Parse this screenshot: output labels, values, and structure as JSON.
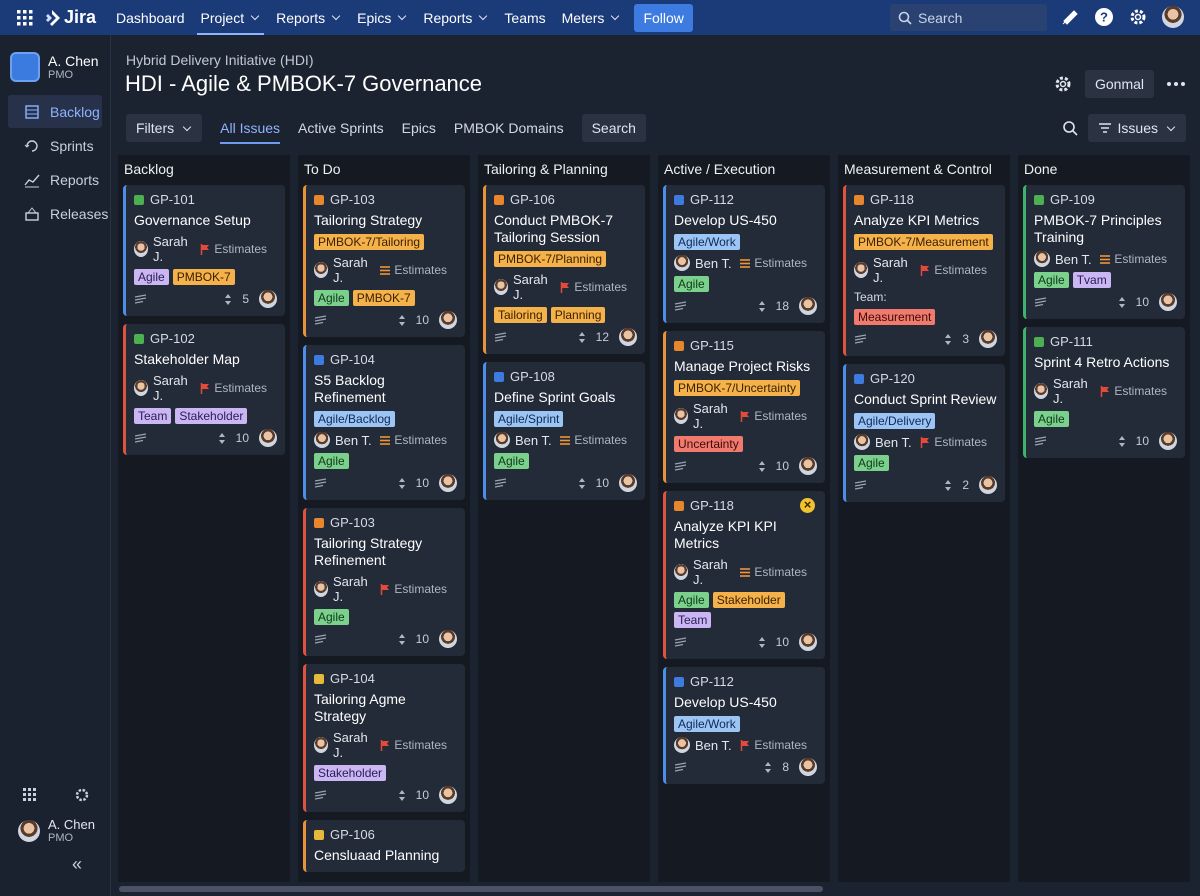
{
  "nav": {
    "logo": "Jira",
    "items": [
      {
        "label": "Dashboard",
        "menu": false
      },
      {
        "label": "Project",
        "menu": true,
        "active": true
      },
      {
        "label": "Reports",
        "menu": true
      },
      {
        "label": "Epics",
        "menu": true
      },
      {
        "label": "Reports",
        "menu": true
      },
      {
        "label": "Teams",
        "menu": false
      },
      {
        "label": "Meters",
        "menu": true
      }
    ],
    "follow": "Follow",
    "search": "Search"
  },
  "sidebar": {
    "user": {
      "name": "A. Chen",
      "role": "PMO"
    },
    "items": [
      {
        "label": "Backlog",
        "icon": "backlog",
        "active": true
      },
      {
        "label": "Sprints",
        "icon": "sprints"
      },
      {
        "label": "Reports",
        "icon": "reports"
      },
      {
        "label": "Releases",
        "icon": "releases"
      }
    ],
    "footer_user": {
      "name": "A. Chen",
      "role": "PMO"
    }
  },
  "header": {
    "breadcrumb": "Hybrid Delivery Initiative (HDI)",
    "title": "HDI - Agile & PMBOK-7 Governance",
    "button": "Gonmal"
  },
  "toolbar": {
    "filters": "Filters",
    "tabs": [
      "All Issues",
      "Active Sprints",
      "Epics",
      "PMBOK Domains"
    ],
    "active_tab": 0,
    "search": "Search",
    "issues": "Issues"
  },
  "columns": [
    {
      "title": "Backlog",
      "cards": [
        {
          "key": "GP-101",
          "type": "green",
          "accent": "blue",
          "title": "Governance Setup",
          "tags": [],
          "assignee": "Sarah J.",
          "priority": "high",
          "estimate": "Estimates",
          "labels": [
            {
              "text": "Agile",
              "color": "purple"
            },
            {
              "text": "PMBOK-7",
              "color": "orange"
            }
          ],
          "count": 5
        },
        {
          "key": "GP-102",
          "type": "green",
          "accent": "red",
          "title": "Stakeholder Map",
          "tags": [],
          "assignee": "Sarah J.",
          "priority": "high",
          "estimate": "Estimates",
          "labels": [
            {
              "text": "Team",
              "color": "purple"
            },
            {
              "text": "Stakeholder",
              "color": "purple"
            }
          ],
          "count": 10
        }
      ]
    },
    {
      "title": "To Do",
      "cards": [
        {
          "key": "GP-103",
          "type": "orange",
          "accent": "orange",
          "title": "Tailoring Strategy",
          "tags": [
            {
              "text": "PMBOK-7/Tailoring",
              "color": "orange"
            }
          ],
          "assignee": "Sarah J.",
          "priority": "medium",
          "estimate": "Estimates",
          "labels": [
            {
              "text": "Agile",
              "color": "green"
            },
            {
              "text": "PMBOK-7",
              "color": "orange"
            }
          ],
          "count": 10
        },
        {
          "key": "GP-104",
          "type": "blue",
          "accent": "blue",
          "title": "S5 Backlog Refinement",
          "tags": [
            {
              "text": "Agile/Backlog",
              "color": "blue"
            }
          ],
          "assignee": "Ben T.",
          "priority": "medium",
          "estimate": "Estimates",
          "labels": [
            {
              "text": "Agile",
              "color": "green"
            }
          ],
          "count": 10
        },
        {
          "key": "GP-103",
          "type": "orange",
          "accent": "red",
          "title": "Tailoring Strategy Refinement",
          "tags": [],
          "assignee": "Sarah J.",
          "priority": "high",
          "estimate": "Estimates",
          "labels": [
            {
              "text": "Agile",
              "color": "green"
            }
          ],
          "count": 10
        },
        {
          "key": "GP-104",
          "type": "yellow",
          "accent": "red",
          "title": "Tailoring Agme Strategy",
          "tags": [],
          "assignee": "Sarah J.",
          "priority": "high",
          "estimate": "Estimates",
          "labels": [
            {
              "text": "Stakeholder",
              "color": "purple"
            }
          ],
          "count": 10
        },
        {
          "key": "GP-106",
          "type": "yellow",
          "accent": "orange",
          "title": "Censluaad Planning",
          "tags": [],
          "labels": []
        }
      ]
    },
    {
      "title": "Tailoring & Planning",
      "cards": [
        {
          "key": "GP-106",
          "type": "orange",
          "accent": "orange",
          "title": "Conduct PMBOK-7 Tailoring Session",
          "tags": [
            {
              "text": "PMBOK-7/Planning",
              "color": "orange"
            }
          ],
          "assignee": "Sarah J.",
          "priority": "high",
          "estimate": "Estimates",
          "labels": [
            {
              "text": "Tailoring",
              "color": "orange"
            },
            {
              "text": "Planning",
              "color": "orange"
            }
          ],
          "count": 12
        },
        {
          "key": "GP-108",
          "type": "blue",
          "accent": "blue",
          "title": "Define Sprint Goals",
          "tags": [
            {
              "text": "Agile/Sprint",
              "color": "blue"
            }
          ],
          "assignee": "Ben T.",
          "priority": "medium",
          "estimate": "Estimates",
          "labels": [
            {
              "text": "Agile",
              "color": "green"
            }
          ],
          "count": 10
        }
      ]
    },
    {
      "title": "Active / Execution",
      "cards": [
        {
          "key": "GP-112",
          "type": "blue",
          "accent": "blue",
          "title": "Develop US-450",
          "tags": [
            {
              "text": "Agile/Work",
              "color": "blue"
            }
          ],
          "assignee": "Ben T.",
          "priority": "medium",
          "estimate": "Estimates",
          "labels": [
            {
              "text": "Agile",
              "color": "green"
            }
          ],
          "count": 18
        },
        {
          "key": "GP-115",
          "type": "orange",
          "accent": "orange",
          "title": "Manage Project Risks",
          "tags": [
            {
              "text": "PMBOK-7/Uncertainty",
              "color": "orange"
            }
          ],
          "assignee": "Sarah J.",
          "priority": "high",
          "estimate": "Estimates",
          "labels": [
            {
              "text": "Uncertainty",
              "color": "red"
            }
          ],
          "count": 10
        },
        {
          "key": "GP-118",
          "type": "orange",
          "accent": "red",
          "flagged": true,
          "title": "Analyze KPI KPI Metrics",
          "tags": [],
          "assignee": "Sarah J.",
          "priority": "medium",
          "estimate": "Estimates",
          "labels": [
            {
              "text": "Agile",
              "color": "green"
            },
            {
              "text": "Stakeholder",
              "color": "orange"
            },
            {
              "text": "Team",
              "color": "purple"
            }
          ],
          "count": 10
        },
        {
          "key": "GP-112",
          "type": "blue",
          "accent": "blue",
          "title": "Develop US-450",
          "tags": [
            {
              "text": "Agile/Work",
              "color": "blue"
            }
          ],
          "assignee": "Ben T.",
          "priority": "high",
          "estimate": "Estimates",
          "labels": [],
          "count": 8
        }
      ]
    },
    {
      "title": "Measurement & Control",
      "cards": [
        {
          "key": "GP-118",
          "type": "orange",
          "accent": "red",
          "title": "Analyze KPI Metrics",
          "tags": [
            {
              "text": "PMBOK-7/Measurement",
              "color": "orange"
            }
          ],
          "assignee": "Sarah J.",
          "priority": "high",
          "estimate": "Estimates",
          "note": "Team:",
          "labels": [
            {
              "text": "Measurement",
              "color": "red"
            }
          ],
          "count": 3
        },
        {
          "key": "GP-120",
          "type": "blue",
          "accent": "blue",
          "title": "Conduct Sprint Review",
          "tags": [
            {
              "text": "Agile/Delivery",
              "color": "blue"
            }
          ],
          "assignee": "Ben T.",
          "priority": "high",
          "estimate": "Estimates",
          "labels": [
            {
              "text": "Agile",
              "color": "green"
            }
          ],
          "count": 2
        }
      ]
    },
    {
      "title": "Done",
      "cards": [
        {
          "key": "GP-109",
          "type": "green",
          "accent": "green",
          "title": "PMBOK-7 Principles Training",
          "tags": [],
          "assignee": "Ben T.",
          "priority": "medium",
          "estimate": "Estimates",
          "labels": [
            {
              "text": "Agile",
              "color": "green"
            },
            {
              "text": "Tvam",
              "color": "purple"
            }
          ],
          "count": 10
        },
        {
          "key": "GP-111",
          "type": "green",
          "accent": "green",
          "title": "Sprint 4 Retro Actions",
          "tags": [],
          "assignee": "Sarah J.",
          "priority": "high",
          "estimate": "Estimates",
          "labels": [
            {
              "text": "Agile",
              "color": "green"
            }
          ],
          "count": 10
        }
      ]
    }
  ]
}
